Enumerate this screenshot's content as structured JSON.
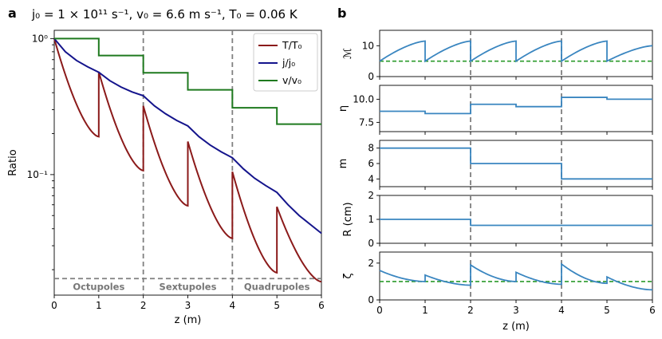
{
  "figure": {
    "panel_a_letter": "a",
    "panel_b_letter": "b",
    "title_a": "j₀ = 1 × 10¹¹ s⁻¹, v₀ = 6.6 m s⁻¹, T₀ = 0.06 K",
    "colors": {
      "T": "#8b1a1a",
      "j": "#14148c",
      "v": "#1f7a1f",
      "b_line": "#3a86c0",
      "b_ref": "#2b9a2b",
      "divider": "#808080"
    }
  },
  "chart_data": [
    {
      "type": "line",
      "panel": "a",
      "xlabel": "z (m)",
      "ylabel": "Ratio",
      "xlim": [
        0,
        6
      ],
      "ylim": [
        0.013,
        1.15
      ],
      "yscale": "log",
      "xticks": [
        "0",
        "1",
        "2",
        "3",
        "4",
        "5",
        "6"
      ],
      "yticks": [
        {
          "value": 1,
          "label": "10⁰"
        },
        {
          "value": 0.1,
          "label": "10⁻¹"
        }
      ],
      "legend_position": "top-right",
      "series": [
        {
          "name": "T/T₀",
          "color_key": "T",
          "segments": [
            {
              "x0": 0,
              "x1": 1,
              "y0": 1.0,
              "y1": 0.19
            },
            {
              "x0": 1,
              "x1": 2,
              "y0": 0.57,
              "y1": 0.107
            },
            {
              "x0": 2,
              "x1": 3,
              "y0": 0.32,
              "y1": 0.059
            },
            {
              "x0": 3,
              "x1": 4,
              "y0": 0.175,
              "y1": 0.034
            },
            {
              "x0": 4,
              "x1": 5,
              "y0": 0.105,
              "y1": 0.019
            },
            {
              "x0": 5,
              "x1": 6,
              "y0": 0.058,
              "y1": 0.0163
            }
          ]
        },
        {
          "name": "j/j₀",
          "color_key": "j",
          "x": [
            0,
            0.25,
            0.5,
            0.75,
            1.0,
            1.25,
            1.5,
            1.75,
            2.0,
            2.25,
            2.5,
            2.75,
            3.0,
            3.25,
            3.5,
            3.75,
            4.0,
            4.25,
            4.5,
            4.75,
            5.0,
            5.25,
            5.5,
            5.75,
            6.0
          ],
          "y": [
            1.0,
            0.8,
            0.69,
            0.62,
            0.565,
            0.49,
            0.44,
            0.405,
            0.38,
            0.32,
            0.28,
            0.25,
            0.228,
            0.19,
            0.165,
            0.147,
            0.133,
            0.11,
            0.094,
            0.083,
            0.074,
            0.06,
            0.05,
            0.043,
            0.037
          ]
        },
        {
          "name": "v/v₀",
          "color_key": "v",
          "steps": [
            {
              "x0": 0,
              "x1": 1,
              "y": 1.0
            },
            {
              "x0": 1,
              "x1": 2,
              "y": 0.75
            },
            {
              "x0": 2,
              "x1": 3,
              "y": 0.56
            },
            {
              "x0": 3,
              "x1": 4,
              "y": 0.42
            },
            {
              "x0": 4,
              "x1": 5,
              "y": 0.31
            },
            {
              "x0": 5,
              "x1": 6,
              "y": 0.235
            }
          ]
        }
      ],
      "dividers_x": [
        2,
        4
      ],
      "baseline_y": 0.0172,
      "regions": [
        {
          "label": "Octupoles",
          "x": 1
        },
        {
          "label": "Sextupoles",
          "x": 3
        },
        {
          "label": "Quadrupoles",
          "x": 5
        }
      ]
    },
    {
      "type": "line",
      "panel": "b",
      "xlabel": "z (m)",
      "xlim": [
        0,
        6
      ],
      "xticks": [
        "0",
        "1",
        "2",
        "3",
        "4",
        "5",
        "6"
      ],
      "dividers_x": [
        2,
        4
      ],
      "subplots": [
        {
          "ylabel": "ℳ",
          "ylim": [
            0,
            15
          ],
          "yticks": [
            {
              "value": 0,
              "label": "0"
            },
            {
              "value": 10,
              "label": "10"
            }
          ],
          "reference_y": 5,
          "sawtooth": [
            {
              "x0": 0,
              "x1": 1,
              "y0": 5,
              "y1": 11.5
            },
            {
              "x0": 1,
              "x1": 2,
              "y0": 5,
              "y1": 11.5
            },
            {
              "x0": 2,
              "x1": 3,
              "y0": 5,
              "y1": 11.5
            },
            {
              "x0": 3,
              "x1": 4,
              "y0": 5,
              "y1": 11.5
            },
            {
              "x0": 4,
              "x1": 5,
              "y0": 5,
              "y1": 11.5
            },
            {
              "x0": 5,
              "x1": 6,
              "y0": 5,
              "y1": 10
            }
          ]
        },
        {
          "ylabel": "η",
          "ylim": [
            6.5,
            11.5
          ],
          "yticks": [
            {
              "value": 7.5,
              "label": "7.5"
            },
            {
              "value": 10.0,
              "label": "10.0"
            }
          ],
          "steps": [
            {
              "x0": 0,
              "x1": 1,
              "y": 8.7
            },
            {
              "x0": 1,
              "x1": 2,
              "y": 8.45
            },
            {
              "x0": 2,
              "x1": 3,
              "y": 9.45
            },
            {
              "x0": 3,
              "x1": 4,
              "y": 9.2
            },
            {
              "x0": 4,
              "x1": 5,
              "y": 10.2
            },
            {
              "x0": 5,
              "x1": 6,
              "y": 10.0
            }
          ]
        },
        {
          "ylabel": "m",
          "ylim": [
            3,
            9
          ],
          "yticks": [
            {
              "value": 4,
              "label": "4"
            },
            {
              "value": 6,
              "label": "6"
            },
            {
              "value": 8,
              "label": "8"
            }
          ],
          "steps": [
            {
              "x0": 0,
              "x1": 2,
              "y": 8
            },
            {
              "x0": 2,
              "x1": 4,
              "y": 6
            },
            {
              "x0": 4,
              "x1": 6,
              "y": 4
            }
          ]
        },
        {
          "ylabel": "R (cm)",
          "ylim": [
            0,
            2
          ],
          "yticks": [
            {
              "value": 0,
              "label": "0"
            },
            {
              "value": 1,
              "label": "1"
            },
            {
              "value": 2,
              "label": "2"
            }
          ],
          "steps": [
            {
              "x0": 0,
              "x1": 2,
              "y": 1.0
            },
            {
              "x0": 2,
              "x1": 6,
              "y": 0.75
            }
          ]
        },
        {
          "ylabel": "ζ",
          "ylim": [
            0,
            2.6
          ],
          "yticks": [
            {
              "value": 0,
              "label": "0"
            },
            {
              "value": 2,
              "label": "2"
            }
          ],
          "reference_y": 1,
          "segments": [
            {
              "x0": 0,
              "x1": 1,
              "y0": 1.6,
              "y1": 1.0
            },
            {
              "x0": 1,
              "x1": 2,
              "y0": 1.35,
              "y1": 0.8
            },
            {
              "x0": 2,
              "x1": 3,
              "y0": 1.9,
              "y1": 1.0
            },
            {
              "x0": 3,
              "x1": 4,
              "y0": 1.5,
              "y1": 0.85
            },
            {
              "x0": 4,
              "x1": 5,
              "y0": 1.95,
              "y1": 0.9
            },
            {
              "x0": 5,
              "x1": 6,
              "y0": 1.25,
              "y1": 0.55
            }
          ]
        }
      ]
    }
  ]
}
